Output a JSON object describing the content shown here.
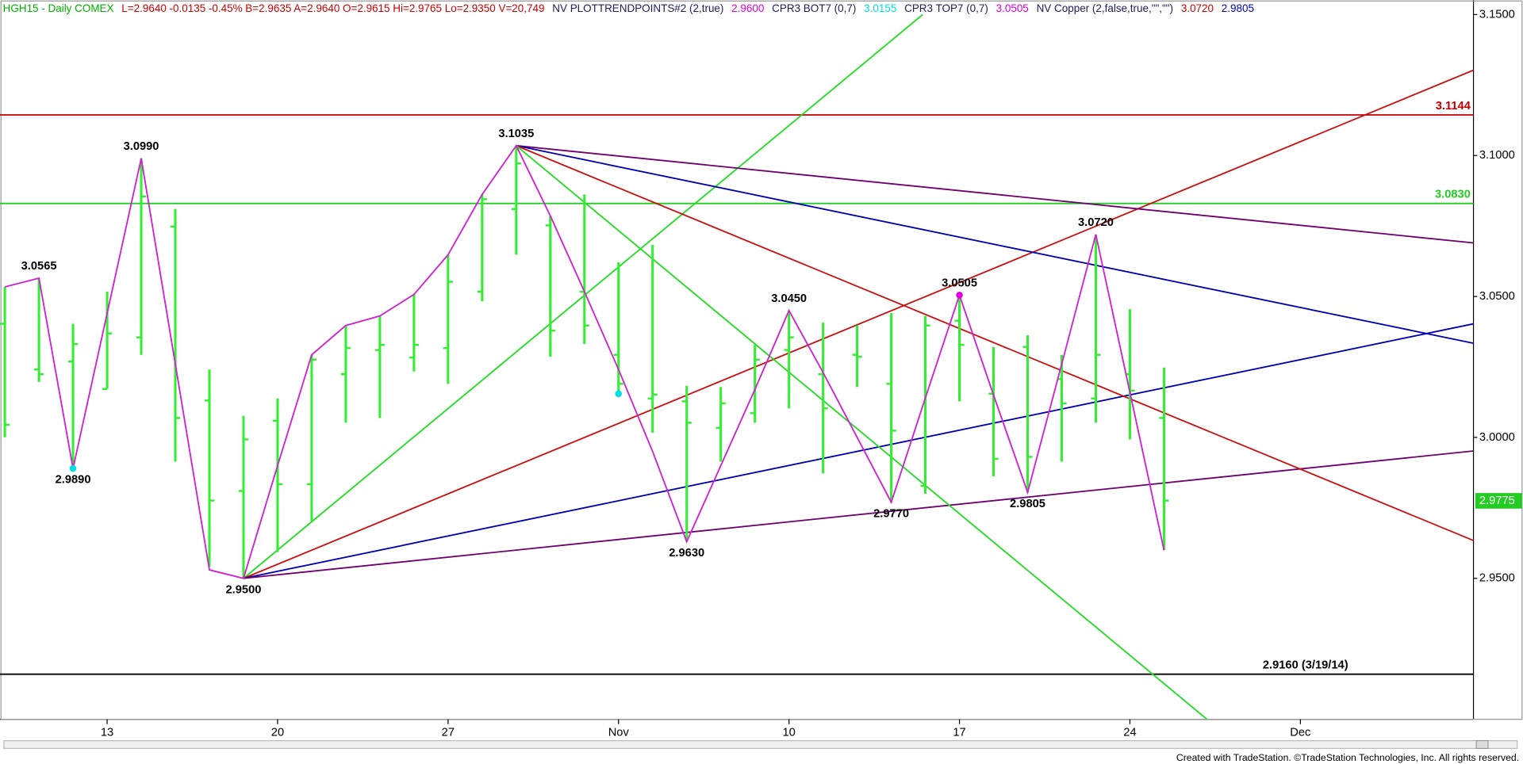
{
  "chart_data": {
    "type": "ohlc",
    "header": [
      {
        "text": "HGH15 - Daily  COMEX",
        "color": "#00b000"
      },
      {
        "text": "L=2.9640  -0.0135  -0.45%  B=2.9635  A=2.9640  O=2.9615  Hi=2.9765  Lo=2.9350  V=20,749",
        "color": "#d00000"
      },
      {
        "text": "NV  PLOTTRENDPOINTS#2 (2,true)",
        "color": "#202060"
      },
      {
        "text": "2.9600",
        "color": "#e000e0"
      },
      {
        "text": "CPR3 BOT7 (0,7)",
        "color": "#202060"
      },
      {
        "text": "3.0155",
        "color": "#00e0e0"
      },
      {
        "text": "CPR3 TOP7 (0,7)",
        "color": "#202060"
      },
      {
        "text": "3.0505",
        "color": "#e000e0"
      },
      {
        "text": "NV Copper (2,false,true,\"\",\"\")",
        "color": "#202060"
      },
      {
        "text": "3.0720",
        "color": "#d00000"
      },
      {
        "text": "2.9805",
        "color": "#0000c0"
      }
    ],
    "footer": "Created with TradeStation. ©TradeStation Technologies, Inc. All rights reserved.",
    "categories": [
      null,
      null,
      null,
      "13",
      null,
      null,
      null,
      null,
      "20",
      null,
      null,
      null,
      null,
      "27",
      null,
      null,
      null,
      null,
      "Nov",
      null,
      null,
      null,
      null,
      "10",
      null,
      null,
      null,
      null,
      "17",
      null,
      null,
      null,
      null,
      "24",
      null,
      null,
      null,
      null,
      "Dec",
      null,
      null,
      null,
      null,
      null
    ],
    "ohlc": {
      "color": "#33ee33",
      "open": [
        3.0403,
        3.0241,
        3.0269,
        3.0172,
        3.0355,
        3.0748,
        3.0131,
        2.981,
        3.0059,
        2.9834,
        3.0224,
        3.031,
        3.0283,
        3.0317,
        3.0517,
        3.081,
        3.0752,
        3.0517,
        3.0293,
        3.0138,
        3.0128,
        3.0034,
        3.0086,
        3.031,
        3.0224,
        3.0293,
        3.019,
        2.9828,
        3.0414,
        3.0155,
        3.0321,
        3.0207,
        3.0138,
        3.0224,
        3.0069,
        null,
        null,
        null,
        null,
        null,
        null,
        null,
        null,
        null
      ],
      "high": [
        3.0534,
        3.0565,
        3.0403,
        3.0517,
        3.099,
        3.081,
        3.0241,
        3.0076,
        3.0138,
        3.0293,
        3.0397,
        3.0431,
        3.0507,
        3.0648,
        3.0862,
        3.1035,
        3.0786,
        3.0862,
        3.0621,
        3.0683,
        3.0183,
        3.0179,
        3.0328,
        3.045,
        3.0407,
        3.0397,
        3.0441,
        3.0431,
        3.0505,
        3.0321,
        3.0362,
        3.0293,
        3.072,
        3.0455,
        3.0248,
        null,
        null,
        null,
        null,
        null,
        null,
        null,
        null,
        null
      ],
      "low": [
        3.0,
        3.0197,
        2.989,
        3.0172,
        3.0293,
        2.9914,
        2.9541,
        2.95,
        2.9593,
        2.9703,
        3.0052,
        3.0069,
        3.0234,
        3.019,
        3.0483,
        3.0648,
        3.0286,
        3.0331,
        3.0159,
        3.0017,
        2.963,
        2.9914,
        3.0052,
        3.0103,
        2.9872,
        3.0179,
        2.977,
        2.98,
        3.0128,
        2.9862,
        2.9805,
        2.9914,
        3.0052,
        2.9993,
        2.96,
        null,
        null,
        null,
        null,
        null,
        null,
        null,
        null,
        null
      ],
      "close": [
        3.0045,
        3.0224,
        3.0331,
        3.0369,
        3.0855,
        3.0069,
        2.9776,
        2.9993,
        2.9834,
        3.0276,
        3.0317,
        3.0328,
        3.0328,
        3.0552,
        3.0845,
        3.0972,
        3.0379,
        3.0397,
        3.019,
        3.0152,
        3.0052,
        3.0121,
        3.0276,
        3.0355,
        3.0103,
        3.0286,
        3.0024,
        3.0397,
        3.0328,
        2.9924,
        2.9931,
        3.0121,
        3.0293,
        3.0166,
        2.9776,
        null,
        null,
        null,
        null,
        null,
        null,
        null,
        null,
        null
      ]
    },
    "zigzag": {
      "color": "#d020d0",
      "values": [
        3.0534,
        3.0565,
        2.989,
        3.044,
        3.099,
        3.026,
        2.953,
        2.95,
        2.99,
        3.0293,
        3.0397,
        3.0431,
        3.0507,
        3.0648,
        3.0862,
        3.1035,
        3.0786,
        3.0517,
        3.0241,
        2.995,
        2.963,
        2.99,
        3.017,
        3.045,
        3.023,
        3.0,
        2.977,
        3.014,
        3.0505,
        3.015,
        2.9805,
        3.026,
        3.072,
        3.016,
        2.96,
        null,
        null,
        null,
        null,
        null,
        null,
        null,
        null,
        null
      ]
    },
    "swing_labels": [
      {
        "x": 1,
        "value": 3.0565,
        "label": "3.0565",
        "pos": "above"
      },
      {
        "x": 2,
        "value": 2.989,
        "label": "2.9890",
        "pos": "below"
      },
      {
        "x": 4,
        "value": 3.099,
        "label": "3.0990",
        "pos": "above"
      },
      {
        "x": 7,
        "value": 2.95,
        "label": "2.9500",
        "pos": "below"
      },
      {
        "x": 15,
        "value": 3.1035,
        "label": "3.1035",
        "pos": "above"
      },
      {
        "x": 20,
        "value": 2.963,
        "label": "2.9630",
        "pos": "below"
      },
      {
        "x": 23,
        "value": 3.045,
        "label": "3.0450",
        "pos": "above"
      },
      {
        "x": 26,
        "value": 2.977,
        "label": "2.9770",
        "pos": "below"
      },
      {
        "x": 28,
        "value": 3.0505,
        "label": "3.0505",
        "pos": "above"
      },
      {
        "x": 30,
        "value": 2.9805,
        "label": "2.9805",
        "pos": "below"
      },
      {
        "x": 32,
        "value": 3.072,
        "label": "3.0720",
        "pos": "above"
      }
    ],
    "dots": [
      {
        "x": 2,
        "value": 2.989,
        "color": "#00e0e0"
      },
      {
        "x": 18,
        "value": 3.0155,
        "color": "#00e0e0"
      },
      {
        "x": 28,
        "value": 3.0505,
        "color": "#e000e0"
      }
    ],
    "levels": [
      {
        "value": 3.1144,
        "label": "3.1144",
        "color": "#c00000"
      },
      {
        "value": 3.083,
        "label": "3.0830",
        "color": "#22cc22"
      },
      {
        "value": 2.916,
        "label": "2.9160 (3/19/14)",
        "color": "#000000"
      }
    ],
    "trendlines": [
      {
        "color": "#22dd22",
        "from": [
          7,
          2.95
        ],
        "to": [
          26.92,
          3.15
        ]
      },
      {
        "color": "#cc1111",
        "from": [
          7,
          2.95
        ],
        "to": [
          43.08,
          3.1303
        ]
      },
      {
        "color": "#0000b0",
        "from": [
          7,
          2.95
        ],
        "to": [
          43.08,
          3.0403
        ]
      },
      {
        "color": "#700070",
        "from": [
          7,
          2.95
        ],
        "to": [
          43.08,
          2.9952
        ]
      },
      {
        "color": "#700070",
        "from": [
          15,
          3.1035
        ],
        "to": [
          43.08,
          3.069
        ]
      },
      {
        "color": "#0000b0",
        "from": [
          15,
          3.1035
        ],
        "to": [
          43.08,
          3.0334
        ]
      },
      {
        "color": "#cc1111",
        "from": [
          15,
          3.1035
        ],
        "to": [
          43.08,
          2.9634
        ]
      },
      {
        "color": "#22dd22",
        "from": [
          15,
          3.1035
        ],
        "to": [
          35.33,
          2.8993
        ]
      }
    ],
    "last_price": {
      "value": 2.9775,
      "label": "2.9775",
      "color": "#22cc22"
    },
    "ylim": [
      2.9,
      3.155
    ],
    "yticks": [
      {
        "value": 3.15,
        "label": "3.1500"
      },
      {
        "value": 3.1,
        "label": "3.1000"
      },
      {
        "value": 3.05,
        "label": "3.0500"
      },
      {
        "value": 3.0,
        "label": "3.0000"
      },
      {
        "value": 2.95,
        "label": "2.9500"
      }
    ]
  }
}
